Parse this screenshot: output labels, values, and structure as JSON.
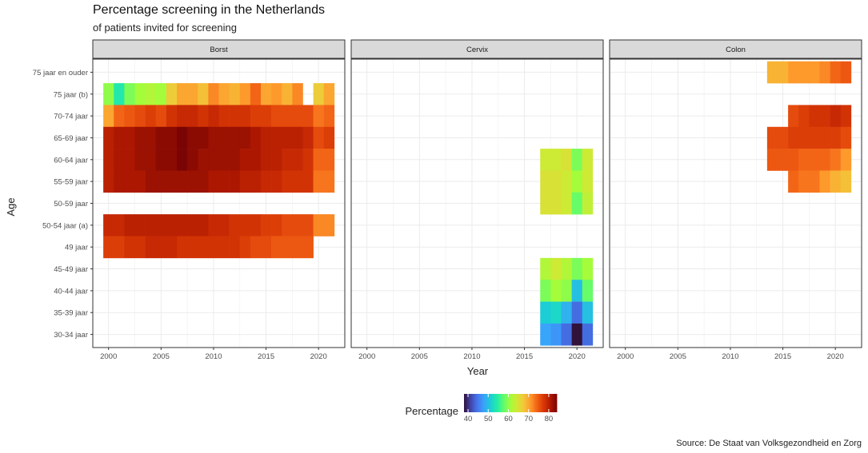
{
  "title": "Percentage screening in the Netherlands",
  "subtitle": "of patients invited for screening",
  "caption": "Source: De Staat van Volksgezondheid en Zorg",
  "chart_data": {
    "type": "heatmap",
    "xlabel": "Year",
    "ylabel": "Age",
    "xlim": [
      1998.5,
      2022.5
    ],
    "x_ticks": [
      2000,
      2005,
      2010,
      2015,
      2020
    ],
    "age_groups": [
      "75 jaar en ouder",
      "75 jaar (b)",
      "70-74 jaar",
      "65-69 jaar",
      "60-64 jaar",
      "55-59 jaar",
      "50-59 jaar",
      "50-54 jaar (a)",
      "49 jaar",
      "45-49 jaar",
      "40-44 jaar",
      "35-39 jaar",
      "30-34 jaar"
    ],
    "legend": {
      "title": "Percentage",
      "position": "bottom",
      "range": [
        38,
        84
      ],
      "ticks": [
        40,
        50,
        60,
        70,
        80
      ]
    },
    "colors": [
      "#30123b",
      "#4145ab",
      "#4675ed",
      "#39a2fc",
      "#1bcfd4",
      "#24eca6",
      "#61fc6c",
      "#a4fc3b",
      "#d1e834",
      "#f3c63a",
      "#fe9b2d",
      "#f36315",
      "#d93806",
      "#b11901",
      "#7a0403"
    ],
    "panels": [
      {
        "name": "Borst",
        "years": [
          2000,
          2001,
          2002,
          2003,
          2004,
          2005,
          2006,
          2007,
          2008,
          2009,
          2010,
          2011,
          2012,
          2013,
          2014,
          2015,
          2016,
          2017,
          2018,
          2019,
          2020,
          2021
        ],
        "rows": {
          "75 jaar (b)": [
            60,
            54,
            59,
            61,
            62,
            61,
            67,
            70,
            70,
            68,
            72,
            70,
            69,
            71,
            74,
            70,
            71,
            69,
            72,
            null,
            67,
            70
          ],
          "70-74 jaar": [
            70,
            74,
            75,
            76,
            77,
            76,
            78,
            79,
            79,
            78,
            79,
            78,
            78,
            78,
            77,
            77,
            76,
            76,
            76,
            76,
            73,
            74
          ],
          "65-69 jaar": [
            80,
            81,
            81,
            82,
            82,
            83,
            83,
            84,
            83,
            83,
            82,
            82,
            82,
            82,
            81,
            80,
            80,
            80,
            80,
            79,
            76,
            77
          ],
          "60-64 jaar": [
            80,
            81,
            81,
            82,
            82,
            83,
            83,
            84,
            83,
            82,
            82,
            82,
            82,
            81,
            81,
            80,
            80,
            79,
            79,
            78,
            74,
            74
          ],
          "55-59 jaar": [
            80,
            81,
            81,
            81,
            82,
            82,
            82,
            82,
            82,
            82,
            81,
            81,
            81,
            80,
            80,
            79,
            79,
            78,
            78,
            78,
            73,
            73
          ],
          "50-54 jaar (a)": [
            79,
            79,
            80,
            80,
            80,
            80,
            80,
            80,
            80,
            80,
            79,
            79,
            78,
            78,
            78,
            77,
            77,
            76,
            76,
            76,
            72,
            72
          ],
          "49 jaar": [
            77,
            77,
            78,
            78,
            79,
            79,
            79,
            78,
            78,
            78,
            78,
            78,
            78,
            77,
            76,
            76,
            75,
            75,
            75,
            75,
            null,
            null
          ]
        }
      },
      {
        "name": "Cervix",
        "years": [
          2017,
          2018,
          2019,
          2020,
          2021
        ],
        "rows": {
          "60-64 jaar": [
            64,
            64,
            65,
            59,
            64
          ],
          "55-59 jaar": [
            65,
            65,
            64,
            61,
            64
          ],
          "50-59 jaar": [
            65,
            65,
            64,
            58,
            63
          ],
          "45-49 jaar": [
            62,
            64,
            62,
            59,
            61
          ],
          "40-44 jaar": [
            59,
            61,
            60,
            50,
            58
          ],
          "35-39 jaar": [
            51,
            52,
            49,
            44,
            50
          ],
          "30-34 jaar": [
            48,
            47,
            44,
            38,
            44
          ]
        }
      },
      {
        "name": "Colon",
        "years": [
          2014,
          2015,
          2016,
          2017,
          2018,
          2019,
          2020,
          2021
        ],
        "rows": {
          "75 jaar en ouder": [
            69,
            69,
            71,
            71,
            71,
            72,
            74,
            75
          ],
          "70-74 jaar": [
            null,
            null,
            76,
            77,
            78,
            78,
            79,
            78
          ],
          "65-69 jaar": [
            76,
            76,
            77,
            77,
            77,
            77,
            77,
            76
          ],
          "60-64 jaar": [
            75,
            75,
            75,
            74,
            74,
            74,
            73,
            71
          ],
          "55-59 jaar": [
            null,
            null,
            74,
            73,
            73,
            71,
            69,
            68
          ]
        }
      }
    ]
  }
}
